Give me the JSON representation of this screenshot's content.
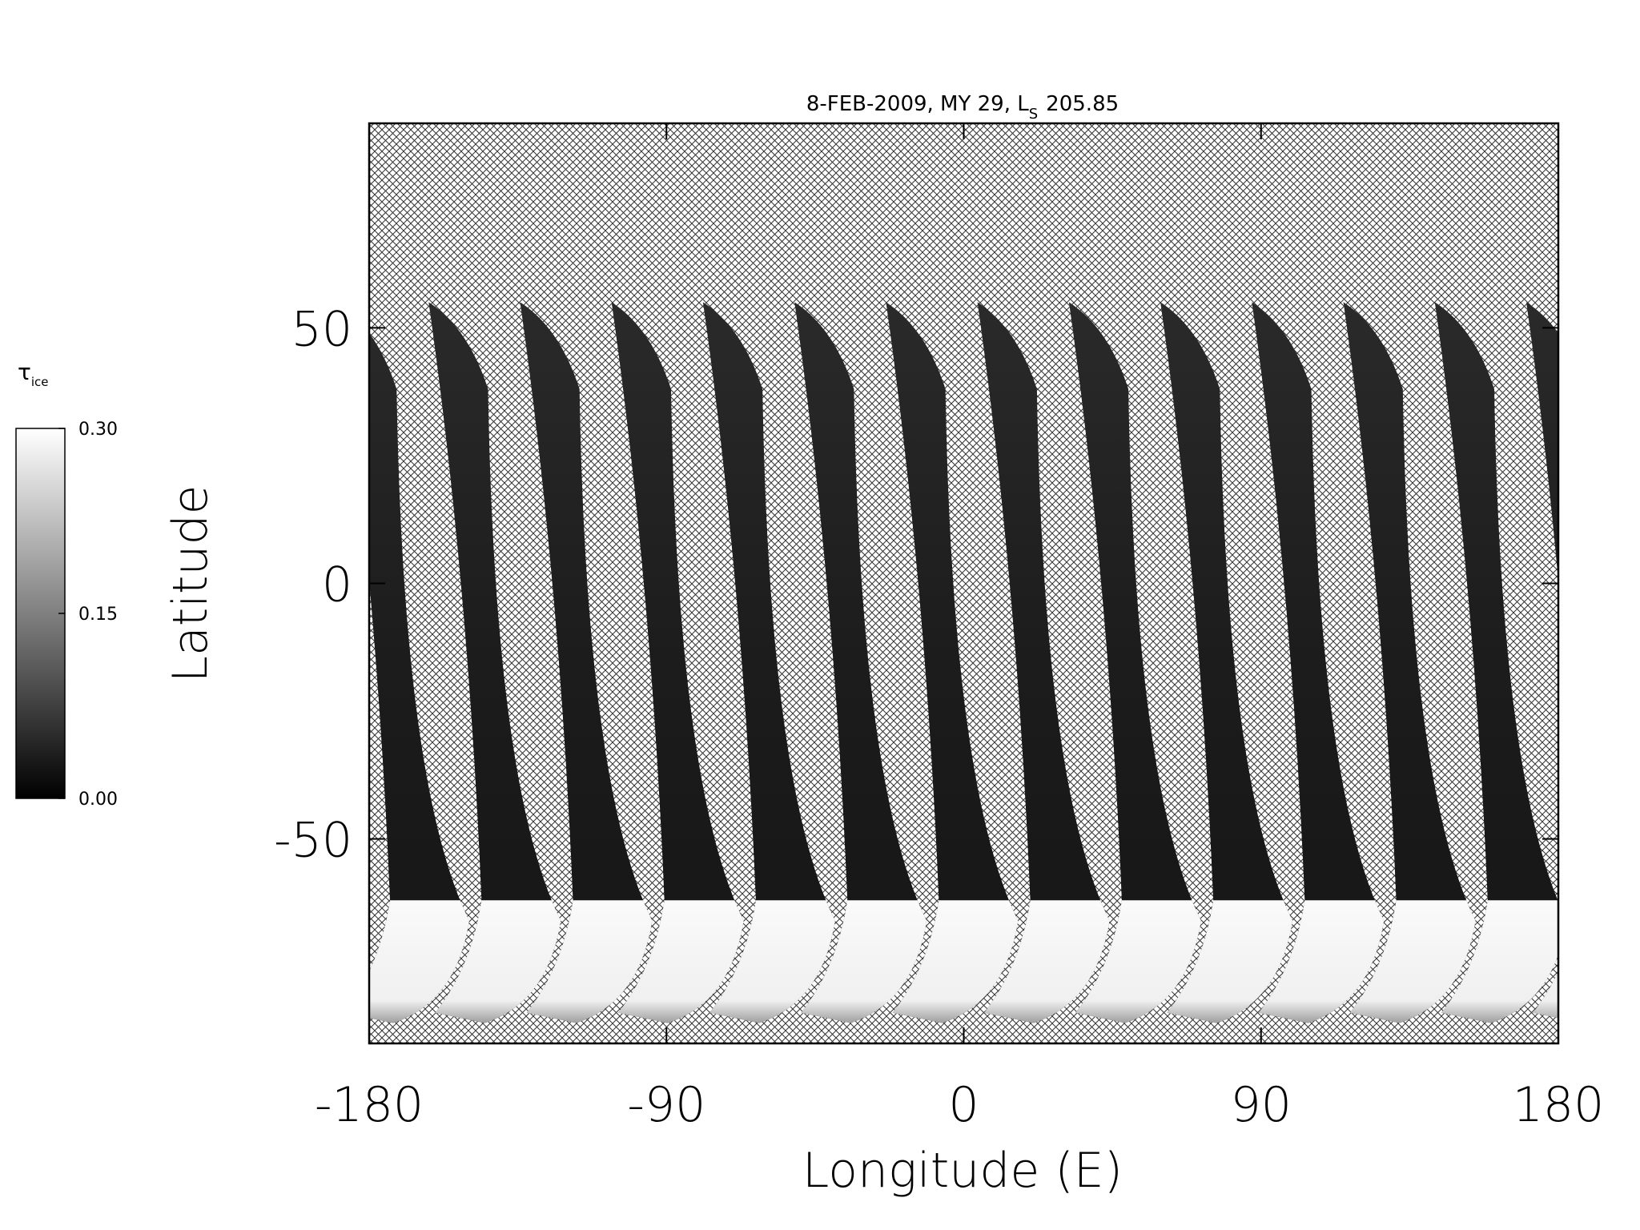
{
  "chart_data": {
    "type": "map",
    "title": "8-FEB-2009, MY 29,  L",
    "title_subscript": "S",
    "title_value": "205.85",
    "x_label": "Longitude (E)",
    "y_label": "Latitude",
    "xlim": [
      -180,
      180
    ],
    "xticks": [
      -180,
      -90,
      0,
      90,
      180
    ],
    "ylim": [
      -90,
      90
    ],
    "yticks": [
      -50,
      0,
      50
    ],
    "colorbar": {
      "label": "τ",
      "label_subscript": "ice",
      "clim": [
        0,
        0.3
      ],
      "ticks": [
        {
          "value": 0,
          "label": "0.00"
        },
        {
          "value": 0.15,
          "label": "0.15"
        },
        {
          "value": 0.3,
          "label": "0.30"
        }
      ],
      "colors": [
        "#000000",
        "#ffffff"
      ]
    }
  }
}
